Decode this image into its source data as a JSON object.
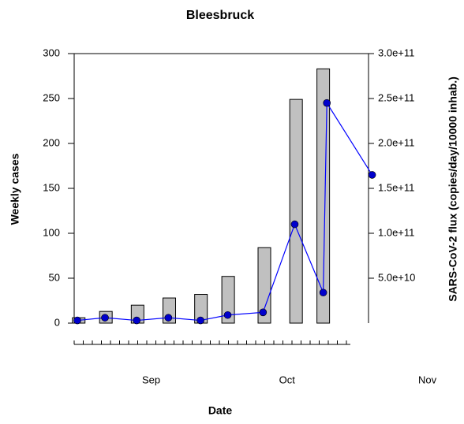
{
  "chart_data": {
    "type": "bar_line",
    "title": "Bleesbruck",
    "x_label": "Date",
    "y_label": "Weekly cases",
    "y2_label": "SARS-CoV-2 flux (copies/day/10000 inhab.)",
    "xlim": [
      0,
      65
    ],
    "xticks": [
      {
        "value": 17,
        "label": "Sep"
      },
      {
        "value": 47,
        "label": "Oct"
      },
      {
        "value": 78,
        "label": "Nov"
      }
    ],
    "ylim": [
      0,
      300
    ],
    "yticks": [
      0,
      50,
      100,
      150,
      200,
      250,
      300
    ],
    "y2lim": [
      0,
      300000000000
    ],
    "y2ticks": [
      {
        "value": 50000000000,
        "label": "5.0e+10"
      },
      {
        "value": 100000000000,
        "label": "1.0e+11"
      },
      {
        "value": 150000000000,
        "label": "1.5e+11"
      },
      {
        "value": 200000000000,
        "label": "2.0e+11"
      },
      {
        "value": 250000000000,
        "label": "2.5e+11"
      },
      {
        "value": 300000000000,
        "label": "3.0e+11"
      }
    ],
    "bars": {
      "name": "Weekly cases",
      "color": "#c0c0c0",
      "x": [
        1,
        7,
        14,
        21,
        28,
        34,
        42,
        49,
        55
      ],
      "values": [
        6,
        13,
        20,
        28,
        32,
        52,
        84,
        249,
        283
      ]
    },
    "line": {
      "name": "SARS-CoV-2 flux",
      "color": "#0000ff",
      "marker_color": "#0000cc",
      "axis": "y2",
      "x": [
        0.7,
        6.8,
        13.8,
        20.8,
        27.9,
        33.9,
        41.7,
        48.7,
        55,
        55.8,
        65.8
      ],
      "values": [
        3000000000,
        6000000000,
        3000000000,
        6000000000,
        3000000000,
        9000000000,
        12000000000,
        110000000000,
        34000000000,
        245000000000,
        165000000000
      ]
    }
  }
}
